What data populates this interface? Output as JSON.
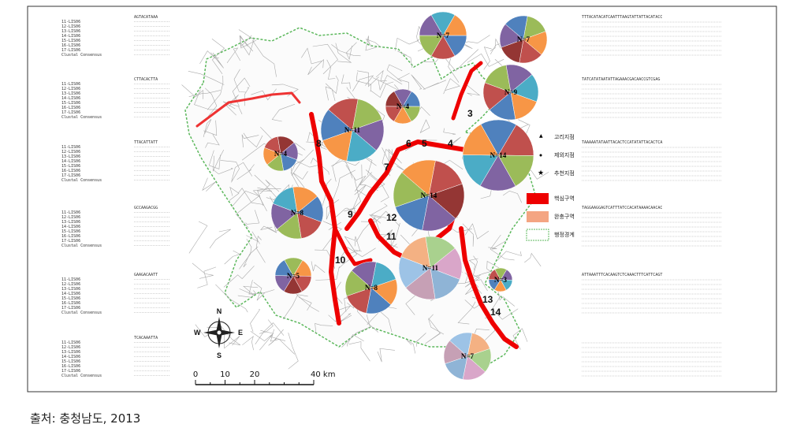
{
  "figure": {
    "left_alignment": [
      {
        "seq": "AGTACATAAA",
        "rows": [
          "11-LIS06",
          "12-LIS06",
          "13-LIS06",
          "14-LIS06",
          "15-LIS06",
          "16-LIS06",
          "17-LIS06",
          "Clustal Consensus"
        ]
      },
      {
        "seq": "CTTACACTTA",
        "rows": [
          "11-LIS06",
          "12-LIS06",
          "13-LIS06",
          "14-LIS06",
          "15-LIS06",
          "16-LIS06",
          "17-LIS06",
          "Clustal Consensus"
        ]
      },
      {
        "seq": "TTACATTATT",
        "rows": [
          "11-LIS06",
          "12-LIS06",
          "13-LIS06",
          "14-LIS06",
          "15-LIS06",
          "16-LIS06",
          "17-LIS06",
          "Clustal Consensus"
        ]
      },
      {
        "seq": "GCCAAGACGG",
        "rows": [
          "11-LIS06",
          "12-LIS06",
          "13-LIS06",
          "14-LIS06",
          "15-LIS06",
          "16-LIS06",
          "17-LIS06",
          "Clustal Consensus"
        ]
      },
      {
        "seq": "GAAGACAATT",
        "rows": [
          "11-LIS06",
          "12-LIS06",
          "13-LIS06",
          "14-LIS06",
          "15-LIS06",
          "16-LIS06",
          "17-LIS06",
          "Clustal Consensus"
        ]
      },
      {
        "seq": "TCACAAATTA",
        "rows": [
          "11-LIS06",
          "12-LIS06",
          "13-LIS06",
          "14-LIS06",
          "15-LIS06",
          "16-LIS06",
          "17-LIS06",
          "Clustal Consensus"
        ]
      }
    ],
    "right_alignment": [
      {
        "seq": "TTTACATACATCAATTTAAGTATTATTACATACC"
      },
      {
        "seq": "TATCATATAATATTAGAAACGACAACCGTCGAG"
      },
      {
        "seq": "TAAAAATATAATTACACTCCATATATTACACTCA"
      },
      {
        "seq": "TAGGAAGGAGTCATTTATCCACATAAAACAACAC"
      },
      {
        "seq": "ATTAAATTTCACAAGTCTCAAACTTTCATTCAGT"
      },
      {
        "seq": ""
      }
    ],
    "pies": [
      {
        "label": "N=7"
      },
      {
        "label": "N=7"
      },
      {
        "label": "N=9"
      },
      {
        "label": "N=4"
      },
      {
        "label": "N=11"
      },
      {
        "label": "N=4"
      },
      {
        "label": "N=14"
      },
      {
        "label": "N=14"
      },
      {
        "label": "N=8"
      },
      {
        "label": "N=5"
      },
      {
        "label": "N=8"
      },
      {
        "label": "N=11"
      },
      {
        "label": "N=3"
      },
      {
        "label": "N=7"
      }
    ],
    "sites": [
      "3",
      "4",
      "5",
      "6",
      "7",
      "8",
      "9",
      "10",
      "11",
      "12",
      "13",
      "14"
    ],
    "legend": [
      "고리지점",
      "제외지점",
      "추천지점",
      "핵심구역",
      "완충구역",
      "행정경계"
    ],
    "compass": {
      "n": "N",
      "s": "S",
      "e": "E",
      "w": "W"
    },
    "scale_bar": {
      "ticks": [
        0,
        10,
        20,
        {
          "value": 40,
          "label": "40 km"
        }
      ]
    },
    "caption": "출처: 충청남도, 2013"
  }
}
